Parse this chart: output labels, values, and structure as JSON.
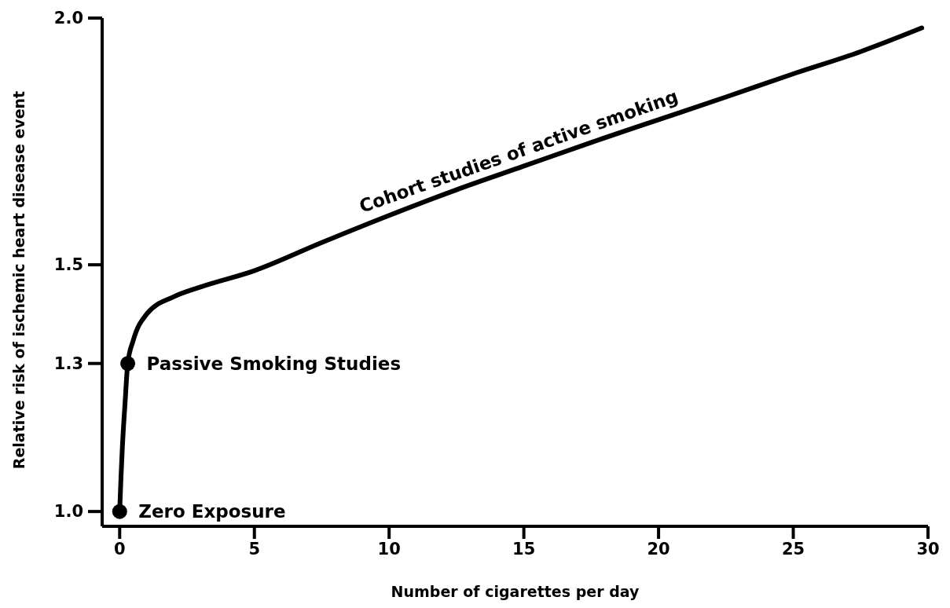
{
  "chart_data": {
    "type": "line",
    "xlabel": "Number of cigarettes per day",
    "ylabel": "Relative risk of ischemic heart disease event",
    "xlim": [
      -0.65,
      30
    ],
    "xticks": [
      0,
      5,
      10,
      15,
      20,
      25,
      30
    ],
    "ylim": [
      0.97,
      2.0
    ],
    "yticks": [
      {
        "value": 1,
        "label": "1.0"
      },
      1.3,
      1.5,
      {
        "value": 2,
        "label": "2.0"
      }
    ],
    "series": [
      {
        "color": "#000000",
        "marker": "none",
        "line_style": "solid",
        "x": [
          0,
          0.05,
          0.1,
          0.2,
          0.3,
          0.5,
          1,
          2,
          3,
          5,
          7.5,
          10,
          12.5,
          15,
          17.5,
          20,
          22.5,
          25,
          27.5,
          29.77
        ],
        "values": [
          1.0,
          1.07,
          1.13,
          1.22,
          1.3,
          1.346,
          1.4,
          1.435,
          1.455,
          1.488,
          1.545,
          1.6,
          1.652,
          1.7,
          1.748,
          1.794,
          1.84,
          1.887,
          1.932,
          1.98
        ]
      },
      {
        "type": "scatter",
        "color": "#000000",
        "marker": "circle",
        "x": [
          0,
          0.3
        ],
        "values": [
          1.0,
          1.3
        ]
      }
    ],
    "annotations": [
      {
        "text": "Cohort studies of active smoking",
        "x": 15,
        "y": 1.7
      },
      {
        "text": "Passive Smoking Studies",
        "x": 0.3,
        "y": 1.3
      },
      {
        "text": "Zero Exposure",
        "x": 0,
        "y": 1.0
      }
    ]
  }
}
